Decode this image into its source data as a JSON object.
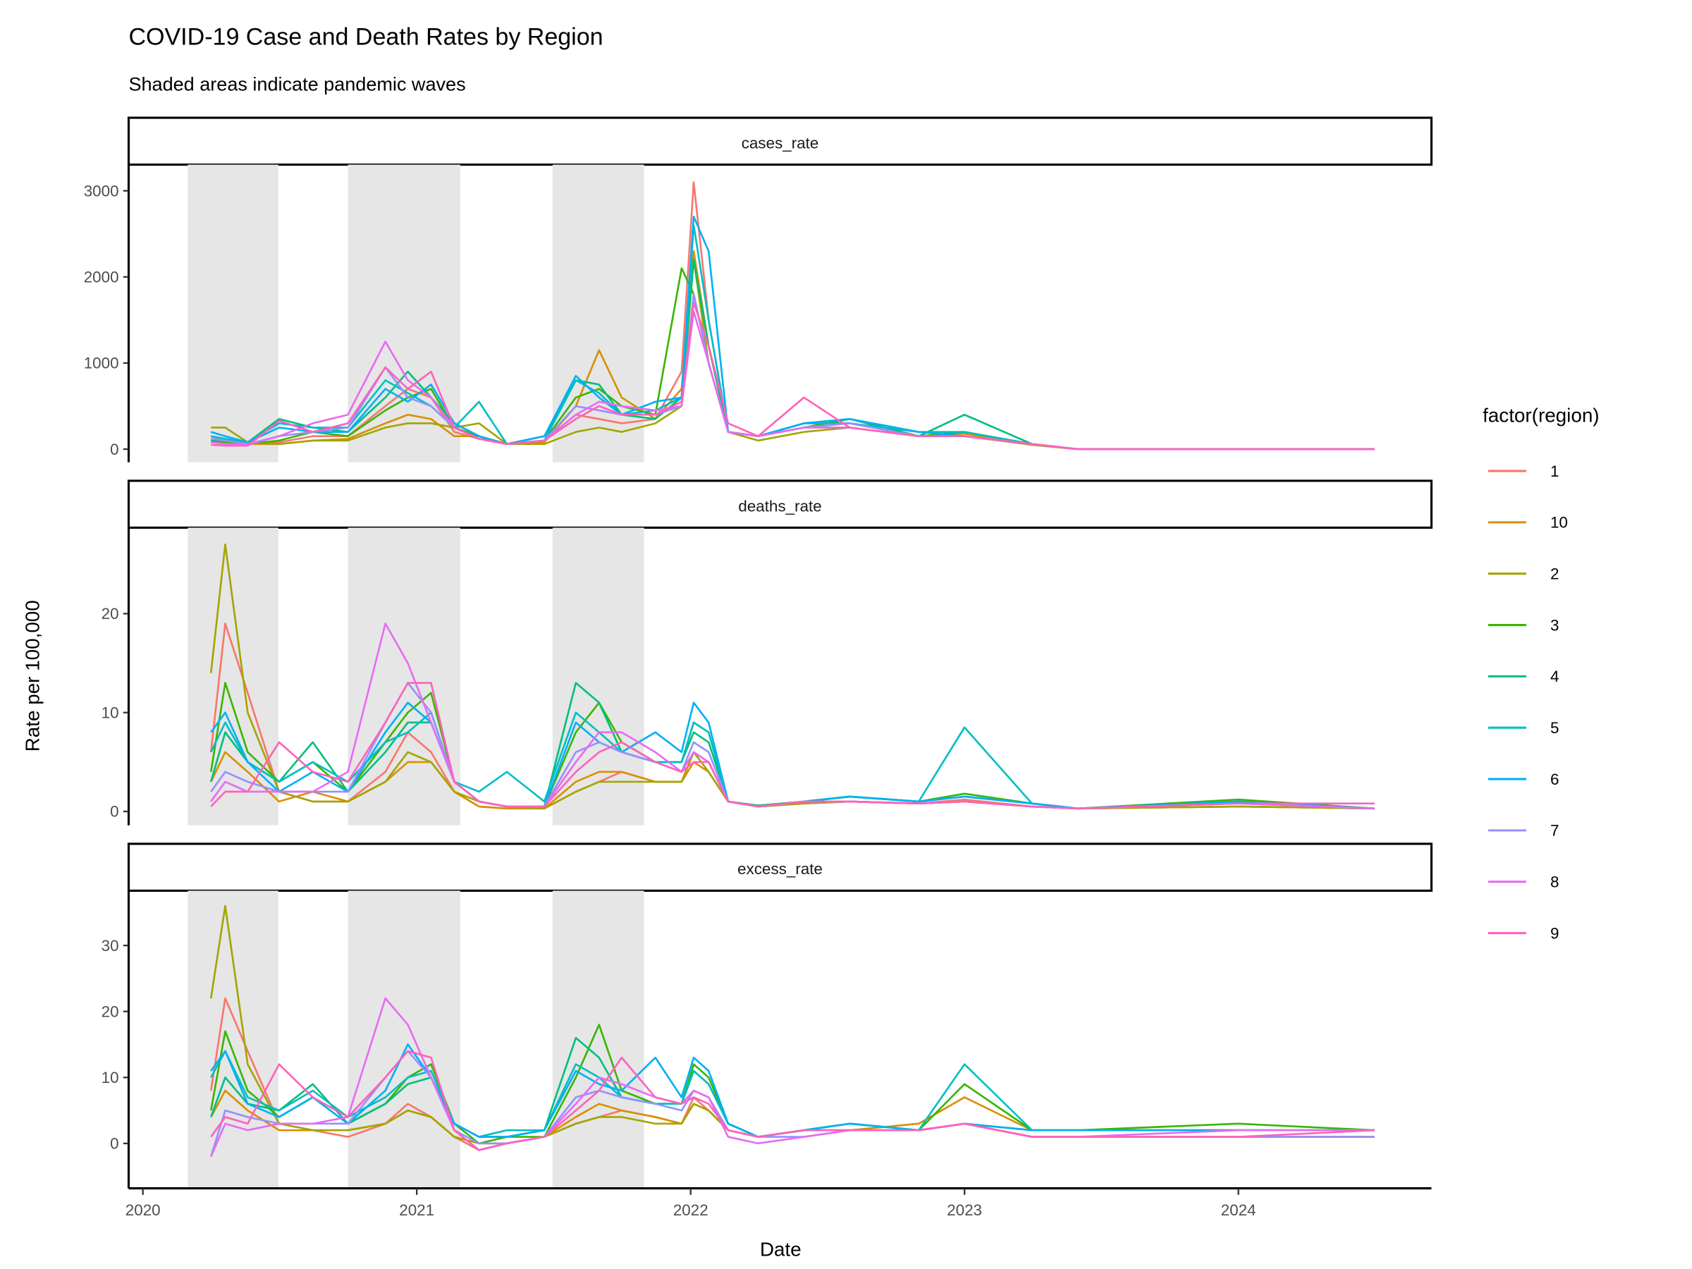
{
  "chart_data": {
    "type": "line",
    "title": "COVID-19 Case and Death Rates by Region",
    "subtitle": "Shaded areas indicate pandemic waves",
    "xlabel": "Date",
    "ylabel": "Rate per 100,000",
    "x_ticks": [
      "2020",
      "2021",
      "2022",
      "2023",
      "2024"
    ],
    "xlim": [
      "2019-12-13",
      "2024-09-15"
    ],
    "grid": false,
    "legend": {
      "title": "factor(region)",
      "position": "right"
    },
    "waves": [
      {
        "start": "2020-03-01",
        "end": "2020-06-30"
      },
      {
        "start": "2020-10-01",
        "end": "2021-02-28"
      },
      {
        "start": "2021-07-01",
        "end": "2021-10-31"
      }
    ],
    "wave_color": "#E6E6E6",
    "x": [
      "2020-04-01",
      "2020-04-20",
      "2020-05-20",
      "2020-07-01",
      "2020-08-15",
      "2020-10-01",
      "2020-11-20",
      "2020-12-20",
      "2021-01-20",
      "2021-02-20",
      "2021-03-25",
      "2021-05-01",
      "2021-06-20",
      "2021-08-01",
      "2021-09-01",
      "2021-10-01",
      "2021-11-15",
      "2021-12-20",
      "2022-01-05",
      "2022-01-25",
      "2022-02-20",
      "2022-04-01",
      "2022-06-01",
      "2022-08-01",
      "2022-11-01",
      "2023-01-01",
      "2023-04-01",
      "2023-06-01",
      "2024-01-01",
      "2024-07-01"
    ],
    "regions": [
      {
        "name": "1",
        "color": "#F8766D"
      },
      {
        "name": "10",
        "color": "#D89000"
      },
      {
        "name": "2",
        "color": "#A3A500"
      },
      {
        "name": "3",
        "color": "#39B600"
      },
      {
        "name": "4",
        "color": "#00BF7D"
      },
      {
        "name": "5",
        "color": "#00BFC4"
      },
      {
        "name": "6",
        "color": "#00B0F6"
      },
      {
        "name": "7",
        "color": "#9590FF"
      },
      {
        "name": "8",
        "color": "#E76BF3"
      },
      {
        "name": "9",
        "color": "#FF62BC"
      }
    ],
    "panels": [
      {
        "strip": "cases_rate",
        "ylim": [
          -152,
          3304
        ],
        "y_ticks": [
          0,
          1000,
          2000,
          3000
        ],
        "y_tick_labels": [
          "0",
          "1000",
          "2000",
          "3000"
        ],
        "series": {
          "1": [
            150,
            100,
            60,
            80,
            150,
            150,
            500,
            700,
            600,
            200,
            120,
            60,
            100,
            400,
            350,
            300,
            350,
            900,
            3100,
            1500,
            200,
            150,
            300,
            300,
            150,
            150,
            60,
            0,
            0,
            0
          ],
          "10": [
            120,
            80,
            60,
            60,
            100,
            120,
            300,
            400,
            350,
            150,
            150,
            60,
            80,
            500,
            1150,
            600,
            350,
            700,
            2300,
            1200,
            200,
            150,
            250,
            250,
            150,
            180,
            50,
            0,
            0,
            0
          ],
          "2": [
            250,
            250,
            80,
            60,
            100,
            100,
            250,
            300,
            300,
            250,
            300,
            60,
            60,
            200,
            250,
            200,
            300,
            500,
            2200,
            1000,
            200,
            100,
            200,
            250,
            150,
            150,
            50,
            0,
            0,
            0
          ],
          "3": [
            80,
            80,
            60,
            100,
            200,
            150,
            450,
            600,
            700,
            250,
            150,
            60,
            100,
            600,
            700,
            500,
            400,
            2100,
            1800,
            1000,
            200,
            150,
            250,
            350,
            150,
            200,
            60,
            0,
            0,
            0
          ],
          "4": [
            100,
            100,
            80,
            350,
            250,
            200,
            600,
            900,
            600,
            300,
            150,
            60,
            150,
            800,
            750,
            400,
            350,
            600,
            2200,
            1200,
            200,
            150,
            300,
            350,
            150,
            400,
            60,
            0,
            0,
            0
          ],
          "5": [
            150,
            120,
            80,
            300,
            250,
            250,
            800,
            650,
            500,
            250,
            550,
            60,
            100,
            800,
            650,
            400,
            450,
            600,
            2600,
            1500,
            200,
            150,
            300,
            300,
            200,
            200,
            60,
            0,
            0,
            0
          ],
          "6": [
            200,
            150,
            80,
            250,
            200,
            200,
            700,
            550,
            750,
            300,
            150,
            60,
            150,
            850,
            600,
            400,
            550,
            600,
            2700,
            2300,
            200,
            150,
            300,
            350,
            200,
            150,
            60,
            0,
            0,
            0
          ],
          "7": [
            120,
            100,
            60,
            150,
            200,
            250,
            950,
            600,
            500,
            250,
            120,
            60,
            100,
            500,
            450,
            400,
            400,
            500,
            1800,
            1000,
            200,
            150,
            250,
            300,
            150,
            150,
            60,
            0,
            0,
            0
          ],
          "8": [
            80,
            60,
            50,
            150,
            300,
            400,
            1250,
            800,
            600,
            250,
            120,
            60,
            100,
            400,
            550,
            500,
            450,
            500,
            1600,
            1000,
            200,
            150,
            250,
            250,
            150,
            150,
            60,
            0,
            0,
            0
          ],
          "9": [
            50,
            40,
            40,
            330,
            200,
            300,
            950,
            700,
            900,
            250,
            120,
            60,
            100,
            350,
            500,
            400,
            400,
            550,
            1700,
            1200,
            300,
            150,
            600,
            250,
            150,
            150,
            60,
            0,
            0,
            0
          ]
        }
      },
      {
        "strip": "deaths_rate",
        "ylim": [
          -1.4,
          28.7
        ],
        "y_ticks": [
          0,
          10,
          20
        ],
        "y_tick_labels": [
          "0",
          "10",
          "20"
        ],
        "series": {
          "1": [
            6,
            19,
            12,
            2,
            1,
            1,
            4,
            8,
            6,
            2,
            0.5,
            0.3,
            0.3,
            2,
            3,
            4,
            3,
            3,
            6,
            5,
            1,
            0.5,
            0.8,
            1,
            0.8,
            1.2,
            0.5,
            0.3,
            0.5,
            0.3
          ],
          "10": [
            3,
            6,
            4,
            1,
            2,
            1,
            3,
            5,
            5,
            2,
            0.5,
            0.3,
            0.3,
            3,
            4,
            4,
            3,
            3,
            5,
            4,
            1,
            0.5,
            0.8,
            1,
            0.8,
            1,
            0.5,
            0.3,
            0.5,
            0.3
          ],
          "2": [
            14,
            27,
            10,
            2,
            1,
            1,
            3,
            6,
            5,
            2,
            1,
            0.5,
            0.3,
            2,
            3,
            3,
            3,
            3,
            6,
            4,
            1,
            0.5,
            0.8,
            1,
            0.8,
            1,
            0.5,
            0.3,
            0.5,
            0.3
          ],
          "3": [
            4,
            13,
            6,
            3,
            5,
            2,
            7,
            10,
            12,
            3,
            1,
            0.5,
            0.5,
            8,
            11,
            7,
            5,
            5,
            9,
            8,
            1,
            0.6,
            1,
            1.5,
            1,
            1.8,
            0.8,
            0.3,
            1.2,
            0.3
          ],
          "4": [
            3,
            8,
            5,
            3,
            7,
            2,
            6,
            9,
            9,
            3,
            1,
            0.5,
            0.5,
            13,
            11,
            6,
            5,
            5,
            8,
            7,
            1,
            0.6,
            1,
            1.5,
            1,
            1.5,
            0.8,
            0.3,
            1,
            0.3
          ],
          "5": [
            6,
            9,
            5,
            3,
            5,
            3,
            7,
            8,
            10,
            3,
            2,
            4,
            1,
            10,
            8,
            6,
            5,
            5,
            9,
            8,
            1,
            0.5,
            1,
            1.5,
            1,
            8.5,
            0.8,
            0.3,
            1,
            0.3
          ],
          "6": [
            8,
            10,
            5,
            2,
            4,
            2,
            8,
            11,
            9,
            3,
            1,
            0.5,
            0.5,
            9,
            7,
            6,
            8,
            6,
            11,
            9,
            1,
            0.5,
            1,
            1.5,
            1,
            1.5,
            0.8,
            0.3,
            1,
            0.3
          ],
          "7": [
            2,
            4,
            3,
            2,
            2,
            2,
            9,
            13,
            10,
            3,
            1,
            0.5,
            0.5,
            6,
            7,
            6,
            5,
            4,
            7,
            6,
            1,
            0.5,
            1,
            1,
            0.8,
            1,
            0.5,
            0.3,
            0.8,
            0.3
          ],
          "8": [
            1,
            3,
            2,
            2,
            2,
            4,
            19,
            15,
            9,
            3,
            1,
            0.5,
            0.5,
            5,
            8,
            8,
            6,
            4,
            6,
            5,
            1,
            0.5,
            1,
            1,
            0.8,
            1,
            0.5,
            0.3,
            0.8,
            0.3
          ],
          "9": [
            0.5,
            2,
            2,
            7,
            4,
            3,
            9,
            13,
            13,
            3,
            1,
            0.5,
            0.5,
            4,
            6,
            7,
            5,
            4,
            5,
            5,
            1,
            0.5,
            1,
            1,
            0.8,
            1,
            0.5,
            0.3,
            0.8,
            0.8
          ]
        }
      },
      {
        "strip": "excess_rate",
        "ylim": [
          -6.8,
          38.3
        ],
        "y_ticks": [
          0,
          10,
          20,
          30
        ],
        "y_tick_labels": [
          "0",
          "10",
          "20",
          "30"
        ],
        "series": {
          "1": [
            8,
            22,
            14,
            3,
            2,
            1,
            3,
            6,
            4,
            1,
            -1,
            0,
            1,
            3,
            4,
            5,
            4,
            3,
            7,
            5,
            2,
            1,
            2,
            2,
            2,
            3,
            1,
            1,
            1,
            1
          ],
          "10": [
            4,
            8,
            5,
            2,
            2,
            2,
            3,
            5,
            4,
            1,
            0,
            0,
            1,
            4,
            6,
            5,
            4,
            3,
            6,
            5,
            2,
            1,
            2,
            2,
            3,
            7,
            2,
            2,
            2,
            2
          ],
          "2": [
            22,
            36,
            12,
            3,
            2,
            2,
            3,
            5,
            4,
            1,
            0,
            0,
            1,
            3,
            4,
            4,
            3,
            3,
            6,
            5,
            2,
            1,
            2,
            2,
            2,
            3,
            1,
            1,
            1,
            1
          ],
          "3": [
            5,
            17,
            8,
            4,
            7,
            3,
            6,
            10,
            12,
            3,
            0,
            1,
            1,
            10,
            18,
            8,
            6,
            6,
            12,
            10,
            3,
            1,
            2,
            3,
            2,
            9,
            2,
            2,
            3,
            2
          ],
          "4": [
            4,
            10,
            6,
            5,
            9,
            3,
            6,
            9,
            10,
            3,
            1,
            1,
            2,
            16,
            13,
            7,
            6,
            6,
            11,
            9,
            3,
            1,
            2,
            3,
            2,
            3,
            2,
            2,
            2,
            2
          ],
          "5": [
            10,
            14,
            7,
            5,
            8,
            4,
            7,
            10,
            11,
            3,
            1,
            2,
            2,
            12,
            10,
            7,
            6,
            6,
            11,
            9,
            3,
            1,
            2,
            3,
            2,
            12,
            2,
            2,
            2,
            2
          ],
          "6": [
            11,
            14,
            6,
            4,
            7,
            3,
            8,
            15,
            10,
            3,
            1,
            1,
            2,
            11,
            9,
            8,
            13,
            7,
            13,
            11,
            3,
            1,
            2,
            3,
            2,
            3,
            2,
            2,
            2,
            2
          ],
          "7": [
            -2,
            5,
            4,
            3,
            3,
            3,
            10,
            14,
            10,
            2,
            0,
            0,
            1,
            7,
            8,
            7,
            6,
            5,
            8,
            7,
            2,
            1,
            1,
            2,
            2,
            3,
            1,
            1,
            1,
            1
          ],
          "8": [
            -2,
            3,
            2,
            3,
            3,
            4,
            22,
            18,
            10,
            2,
            -1,
            0,
            1,
            6,
            10,
            9,
            7,
            6,
            8,
            7,
            1,
            0,
            1,
            2,
            2,
            3,
            1,
            1,
            2,
            2
          ],
          "9": [
            1,
            4,
            3,
            12,
            7,
            4,
            10,
            14,
            13,
            2,
            -1,
            0,
            1,
            5,
            8,
            13,
            7,
            6,
            7,
            6,
            2,
            1,
            2,
            2,
            2,
            3,
            1,
            1,
            1,
            2
          ]
        }
      }
    ]
  }
}
